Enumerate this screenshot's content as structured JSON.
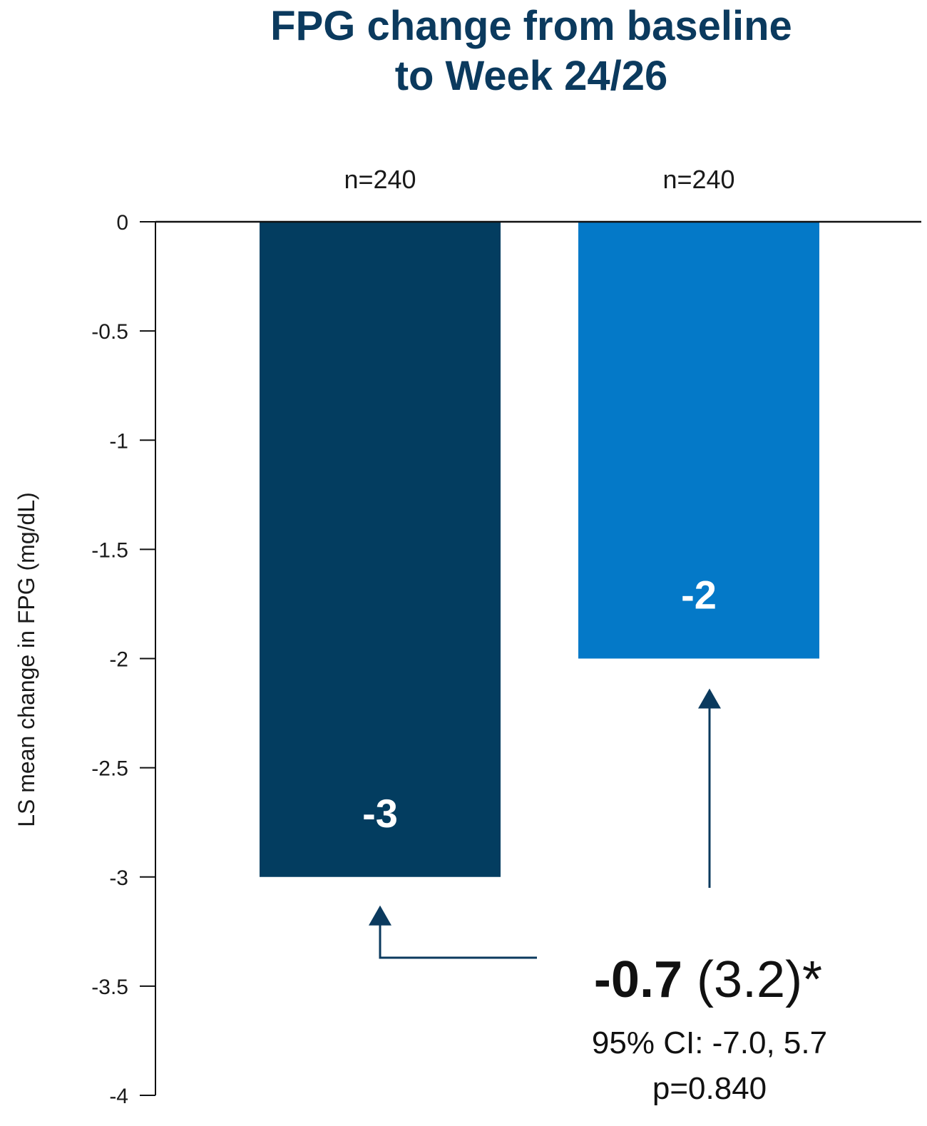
{
  "chart_data": {
    "type": "bar",
    "title_lines": [
      "FPG change from baseline",
      "to Week 24/26"
    ],
    "ylabel": "LS mean change in FPG (mg/dL)",
    "ylim": [
      -4,
      0
    ],
    "yticks": [
      0,
      -0.5,
      -1,
      -1.5,
      -2,
      -2.5,
      -3,
      -3.5,
      -4
    ],
    "ytick_labels": [
      "0",
      "-0.5",
      "-1",
      "-1.5",
      "-2",
      "-2.5",
      "-3",
      "-3.5",
      "-4"
    ],
    "grid": false,
    "legend": "none",
    "bars": [
      {
        "value": -3,
        "label": "-3",
        "n_label": "n=240",
        "color": "#033d60"
      },
      {
        "value": -2,
        "label": "-2",
        "n_label": "n=240",
        "color": "#0479c8"
      }
    ],
    "annotation": {
      "difference_bold": "-0.7",
      "difference_rest": " (3.2)*",
      "ci": "95% CI: -7.0, 5.7",
      "p_value": "p=0.840",
      "arrow_color": "#0b3a5e"
    }
  }
}
